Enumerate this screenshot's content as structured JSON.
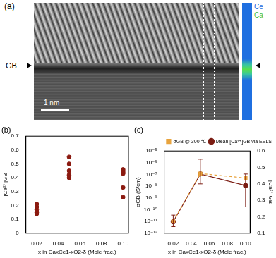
{
  "image_panel": {
    "label": "(a)",
    "annotation": "GB",
    "scale_bar": "1 nm",
    "map_labels": [
      "Ce",
      "Ca"
    ]
  },
  "chart_data": [
    {
      "type": "scatter",
      "title": "(b)",
      "x_label": "x in CaxCe1-xO2-δ (Mole frac.)",
      "y_label": "[Ca²⁺]GB",
      "x": [
        0.02,
        0.02,
        0.02,
        0.02,
        0.02,
        0.05,
        0.05,
        0.05,
        0.05,
        0.05,
        0.1,
        0.1,
        0.1,
        0.1,
        0.1,
        0.1
      ],
      "values": [
        0.14,
        0.15,
        0.17,
        0.19,
        0.21,
        0.4,
        0.42,
        0.45,
        0.5,
        0.55,
        0.26,
        0.33,
        0.43,
        0.44,
        0.45,
        0.46
      ],
      "color": "#8b1a10",
      "marker": "circle",
      "xlim": [
        0.01,
        0.105
      ],
      "xticks": [
        0.02,
        0.04,
        0.06,
        0.08,
        {
          "value": 0.1,
          "label": "0.10"
        }
      ],
      "ylim": [
        0,
        0.7
      ],
      "yticks": [
        0,
        0.1,
        0.2,
        0.3,
        0.4,
        0.5,
        0.6,
        0.7
      ],
      "grid": false
    },
    {
      "type": "line",
      "title": "(c)",
      "x_label": "x in CaxCe1-xO2-δ (Mole frac.)",
      "y_label": "σGB (S/cm)",
      "y2_label": "[Ca²⁺]GB",
      "x": [
        0.02,
        0.05,
        0.1
      ],
      "series": [
        {
          "name": "σGB @ 300 ℃",
          "color": "#e8a33d",
          "marker": "square",
          "line_style": "dashed",
          "values": [
            1e-11,
            1.2e-07,
            5e-08
          ]
        },
        {
          "name": "Mean [Ca²⁺]GB via EELS",
          "color": "#7b1c12",
          "marker": "circle",
          "line_style": "solid",
          "axis": "y2",
          "values": [
            0.17,
            0.46,
            0.39
          ],
          "error_bars": [
            [
              0.14,
              0.21
            ],
            [
              0.4,
              0.55
            ],
            [
              0.26,
              0.46
            ]
          ]
        }
      ],
      "log": "y",
      "xlim": [
        0.01,
        0.105
      ],
      "xticks": [
        0.02,
        0.04,
        0.06,
        0.08,
        {
          "value": 0.1,
          "label": "0.10"
        }
      ],
      "ylim": [
        1e-12,
        1e-05
      ],
      "yticks": [
        {
          "value": 1e-12,
          "label": "10⁻¹²"
        },
        {
          "value": 1e-11,
          "label": "10⁻¹¹"
        },
        {
          "value": 1e-10,
          "label": "10⁻¹⁰"
        },
        {
          "value": 1e-09,
          "label": "10⁻⁹"
        },
        {
          "value": 1e-08,
          "label": "10⁻⁸"
        },
        {
          "value": 1e-07,
          "label": "10⁻⁷"
        },
        {
          "value": 1e-06,
          "label": "10⁻⁶"
        },
        {
          "value": 1e-05,
          "label": "10⁻⁵"
        }
      ],
      "y2lim": [
        0.1,
        0.6
      ],
      "y2ticks": [
        0.1,
        0.2,
        0.3,
        0.4,
        0.5,
        0.6
      ],
      "legend": "top",
      "grid": false
    }
  ]
}
